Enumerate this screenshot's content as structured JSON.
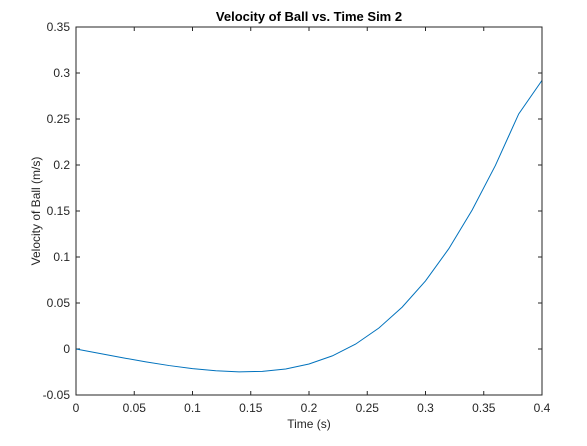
{
  "chart_data": {
    "type": "line",
    "title": "Velocity of Ball vs. Time Sim 2",
    "xlabel": "Time (s)",
    "ylabel": "Velocity of Ball (m/s)",
    "xlim": [
      0,
      0.4
    ],
    "ylim": [
      -0.05,
      0.35
    ],
    "xticks": [
      0,
      0.05,
      0.1,
      0.15,
      0.2,
      0.25,
      0.3,
      0.35,
      0.4
    ],
    "yticks": [
      -0.05,
      0,
      0.05,
      0.1,
      0.15,
      0.2,
      0.25,
      0.3,
      0.35
    ],
    "xtick_labels": [
      "0",
      "0.05",
      "0.1",
      "0.15",
      "0.2",
      "0.25",
      "0.3",
      "0.35",
      "0.4"
    ],
    "ytick_labels": [
      "-0.05",
      "0",
      "0.05",
      "0.1",
      "0.15",
      "0.2",
      "0.25",
      "0.3",
      "0.35"
    ],
    "grid": false,
    "series": [
      {
        "color": "#0072BD",
        "x": [
          0,
          0.02,
          0.04,
          0.06,
          0.08,
          0.1,
          0.12,
          0.14,
          0.16,
          0.18,
          0.2,
          0.22,
          0.24,
          0.26,
          0.28,
          0.3,
          0.32,
          0.34,
          0.36,
          0.38,
          0.4
        ],
        "y": [
          0,
          -0.0048,
          -0.0095,
          -0.014,
          -0.018,
          -0.0213,
          -0.0237,
          -0.0248,
          -0.0243,
          -0.0217,
          -0.0163,
          -0.0075,
          0.0053,
          0.0228,
          0.0455,
          0.074,
          0.109,
          0.151,
          0.1995,
          0.2555,
          0.292
        ]
      }
    ]
  }
}
